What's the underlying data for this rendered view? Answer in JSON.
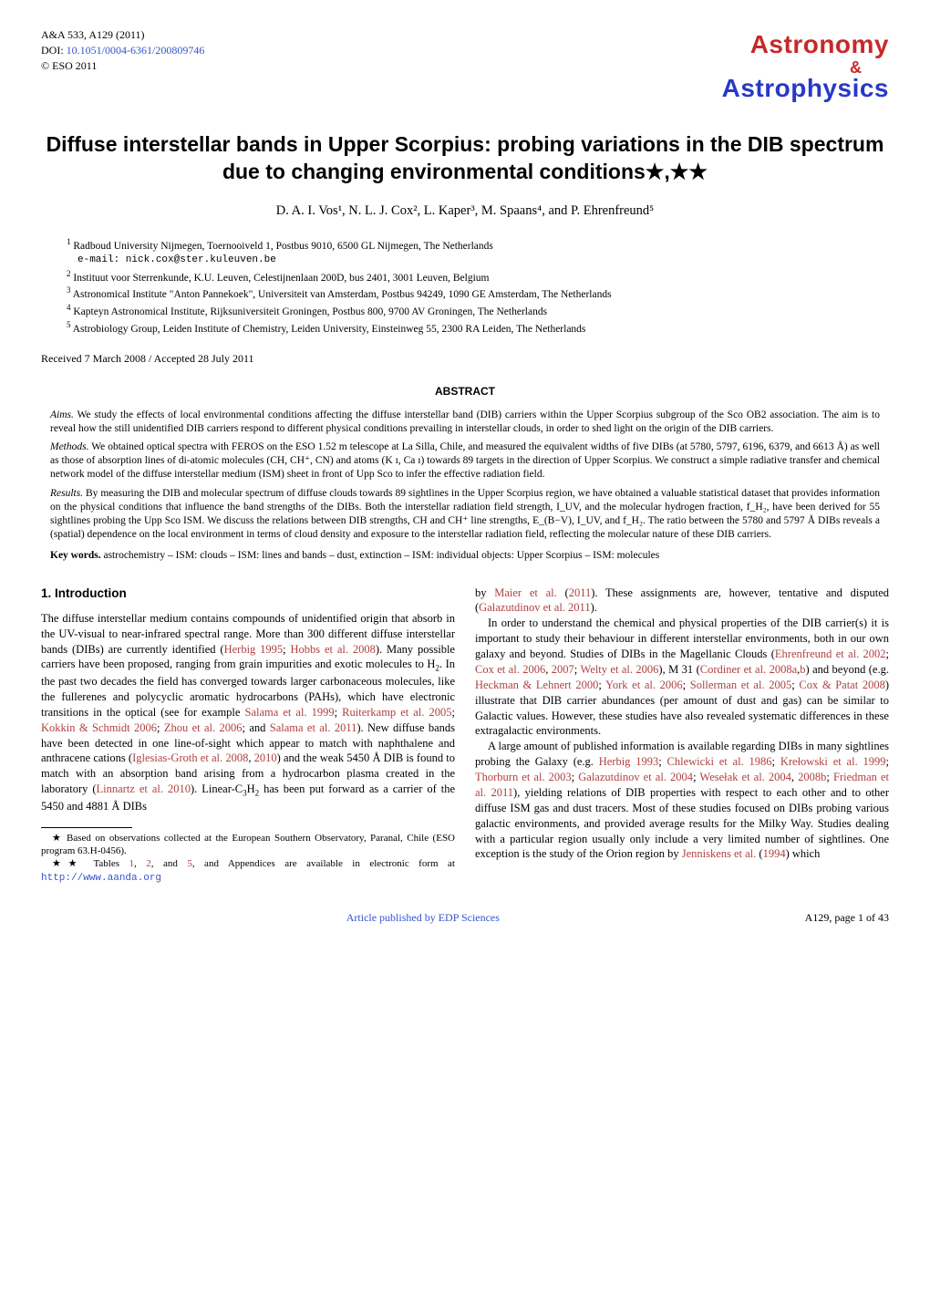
{
  "header": {
    "journal_ref": "A&A 533, A129 (2011)",
    "doi_label": "DOI: ",
    "doi": "10.1051/0004-6361/200809746",
    "copyright": "© ESO 2011",
    "logo_top": "Astronomy",
    "logo_amp": "&",
    "logo_bottom": "Astrophysics"
  },
  "title": "Diffuse interstellar bands in Upper Scorpius: probing variations in the DIB spectrum due to changing environmental conditions★,★★",
  "authors": "D. A. I. Vos¹, N. L. J. Cox², L. Kaper³, M. Spaans⁴, and P. Ehrenfreund⁵",
  "affiliations": [
    {
      "num": "1",
      "text": "Radboud University Nijmegen, Toernooiveld 1, Postbus 9010, 6500 GL Nijmegen, The Netherlands"
    },
    {
      "num": "",
      "text": "e-mail: nick.cox@ster.kuleuven.be",
      "email": true
    },
    {
      "num": "2",
      "text": "Instituut voor Sterrenkunde, K.U. Leuven, Celestijnenlaan 200D, bus 2401, 3001 Leuven, Belgium"
    },
    {
      "num": "3",
      "text": "Astronomical Institute \"Anton Pannekoek\", Universiteit van Amsterdam, Postbus 94249, 1090 GE Amsterdam, The Netherlands"
    },
    {
      "num": "4",
      "text": "Kapteyn Astronomical Institute, Rijksuniversiteit Groningen, Postbus 800, 9700 AV Groningen, The Netherlands"
    },
    {
      "num": "5",
      "text": "Astrobiology Group, Leiden Institute of Chemistry, Leiden University, Einsteinweg 55, 2300 RA Leiden, The Netherlands"
    }
  ],
  "dates": "Received 7 March 2008 / Accepted 28 July 2011",
  "abstract": {
    "heading": "ABSTRACT",
    "aims_label": "Aims.",
    "aims": " We study the effects of local environmental conditions affecting the diffuse interstellar band (DIB) carriers within the Upper Scorpius subgroup of the Sco OB2 association. The aim is to reveal how the still unidentified DIB carriers respond to different physical conditions prevailing in interstellar clouds, in order to shed light on the origin of the DIB carriers.",
    "methods_label": "Methods.",
    "methods": " We obtained optical spectra with FEROS on the ESO 1.52 m telescope at La Silla, Chile, and measured the equivalent widths of five DIBs (at 5780, 5797, 6196, 6379, and 6613 Å) as well as those of absorption lines of di-atomic molecules (CH, CH⁺, CN) and atoms (K ɪ, Ca ɪ) towards 89 targets in the direction of Upper Scorpius. We construct a simple radiative transfer and chemical network model of the diffuse interstellar medium (ISM) sheet in front of Upp Sco to infer the effective radiation field.",
    "results_label": "Results.",
    "results": " By measuring the DIB and molecular spectrum of diffuse clouds towards 89 sightlines in the Upper Scorpius region, we have obtained a valuable statistical dataset that provides information on the physical conditions that influence the band strengths of the DIBs. Both the interstellar radiation field strength, I_UV, and the molecular hydrogen fraction, f_H₂, have been derived for 55 sightlines probing the Upp Sco ISM. We discuss the relations between DIB strengths, CH and CH⁺ line strengths, E_(B−V), I_UV, and f_H₂. The ratio between the 5780 and 5797 Å DIBs reveals a (spatial) dependence on the local environment in terms of cloud density and exposure to the interstellar radiation field, reflecting the molecular nature of these DIB carriers."
  },
  "keywords_label": "Key words.",
  "keywords": " astrochemistry – ISM: clouds – ISM: lines and bands – dust, extinction – ISM: individual objects: Upper Scorpius – ISM: molecules",
  "section1": {
    "heading": "1. Introduction"
  },
  "footer": {
    "center": "Article published by EDP Sciences",
    "right": "A129, page 1 of 43"
  },
  "colors": {
    "link_blue": "#3355cc",
    "cite_red": "#b04040",
    "logo_red": "#c82828",
    "logo_blue": "#2838c8",
    "text": "#000000",
    "bg": "#ffffff"
  }
}
